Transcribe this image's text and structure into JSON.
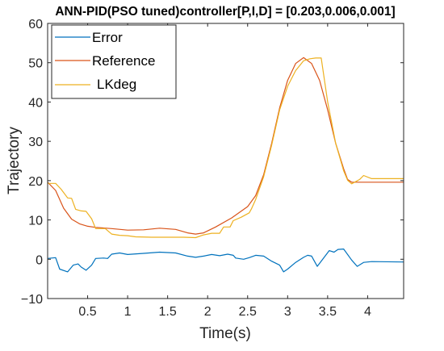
{
  "chart_data": {
    "type": "line",
    "title": "ANN-PID(PSO tuned)controller[P,I,D] = [0.203,0.006,0.001]",
    "xlabel": "Time(s)",
    "ylabel": "Trajectory",
    "xlim": [
      0,
      4.45
    ],
    "ylim": [
      -10,
      60
    ],
    "xticks": [
      0.5,
      1,
      1.5,
      2,
      2.5,
      3,
      3.5,
      4
    ],
    "xtick_labels": [
      "0.5",
      "1",
      "1.5",
      "2",
      "2.5",
      "3",
      "3.5",
      "4"
    ],
    "yticks": [
      -10,
      0,
      10,
      20,
      30,
      40,
      50,
      60
    ],
    "ytick_labels": [
      "−10",
      "0",
      "10",
      "20",
      "30",
      "40",
      "50",
      "60"
    ],
    "grid": false,
    "legend_position": "top-left",
    "series": [
      {
        "name": "Error",
        "color": "#0072BD",
        "points": [
          [
            0,
            0.2
          ],
          [
            0.1,
            0.4
          ],
          [
            0.15,
            -2.5
          ],
          [
            0.25,
            -3.2
          ],
          [
            0.32,
            -1.5
          ],
          [
            0.38,
            -1.2
          ],
          [
            0.42,
            -2.0
          ],
          [
            0.48,
            -2.8
          ],
          [
            0.55,
            -1.5
          ],
          [
            0.6,
            0.2
          ],
          [
            0.7,
            0.3
          ],
          [
            0.75,
            0.2
          ],
          [
            0.8,
            1.3
          ],
          [
            0.9,
            1.6
          ],
          [
            1.0,
            1.2
          ],
          [
            1.2,
            1.5
          ],
          [
            1.4,
            1.8
          ],
          [
            1.6,
            1.6
          ],
          [
            1.75,
            0.8
          ],
          [
            1.85,
            0.5
          ],
          [
            1.95,
            0.8
          ],
          [
            2.05,
            1.2
          ],
          [
            2.15,
            0.9
          ],
          [
            2.25,
            1.3
          ],
          [
            2.32,
            1.0
          ],
          [
            2.35,
            0.3
          ],
          [
            2.45,
            0.0
          ],
          [
            2.52,
            0.4
          ],
          [
            2.6,
            1.0
          ],
          [
            2.7,
            0.8
          ],
          [
            2.8,
            -0.5
          ],
          [
            2.9,
            -1.5
          ],
          [
            2.95,
            -3.2
          ],
          [
            3.0,
            -2.5
          ],
          [
            3.1,
            -0.8
          ],
          [
            3.2,
            0.5
          ],
          [
            3.25,
            1.0
          ],
          [
            3.3,
            0.8
          ],
          [
            3.37,
            -1.8
          ],
          [
            3.45,
            0.3
          ],
          [
            3.52,
            2.2
          ],
          [
            3.58,
            1.8
          ],
          [
            3.63,
            2.5
          ],
          [
            3.7,
            2.6
          ],
          [
            3.8,
            -0.2
          ],
          [
            3.87,
            -1.8
          ],
          [
            3.95,
            -0.8
          ],
          [
            4.05,
            -0.6
          ],
          [
            4.45,
            -0.7
          ]
        ]
      },
      {
        "name": "Reference",
        "color": "#D95319",
        "points": [
          [
            0,
            19.6
          ],
          [
            0.1,
            17.5
          ],
          [
            0.2,
            13.0
          ],
          [
            0.3,
            10.2
          ],
          [
            0.4,
            9.0
          ],
          [
            0.5,
            8.4
          ],
          [
            0.6,
            8.1
          ],
          [
            0.8,
            7.8
          ],
          [
            1.0,
            7.4
          ],
          [
            1.2,
            7.5
          ],
          [
            1.4,
            7.9
          ],
          [
            1.6,
            7.6
          ],
          [
            1.75,
            6.7
          ],
          [
            1.85,
            6.4
          ],
          [
            1.95,
            6.7
          ],
          [
            2.1,
            8.2
          ],
          [
            2.3,
            10.5
          ],
          [
            2.5,
            13.4
          ],
          [
            2.6,
            16.2
          ],
          [
            2.7,
            21.5
          ],
          [
            2.8,
            29.5
          ],
          [
            2.9,
            38.5
          ],
          [
            3.0,
            45.5
          ],
          [
            3.1,
            49.8
          ],
          [
            3.2,
            51.3
          ],
          [
            3.3,
            49.8
          ],
          [
            3.4,
            45.5
          ],
          [
            3.5,
            38.0
          ],
          [
            3.6,
            29.5
          ],
          [
            3.7,
            23.0
          ],
          [
            3.75,
            20.3
          ],
          [
            3.8,
            19.6
          ],
          [
            4.45,
            19.6
          ]
        ]
      },
      {
        "name": "LKdeg",
        "color": "#EDB120",
        "points": [
          [
            0,
            19.3
          ],
          [
            0.1,
            19.3
          ],
          [
            0.17,
            17.8
          ],
          [
            0.25,
            15.6
          ],
          [
            0.3,
            15.5
          ],
          [
            0.35,
            12.7
          ],
          [
            0.42,
            12.3
          ],
          [
            0.48,
            12.2
          ],
          [
            0.55,
            10.3
          ],
          [
            0.6,
            7.8
          ],
          [
            0.72,
            7.8
          ],
          [
            0.8,
            6.4
          ],
          [
            0.9,
            6.1
          ],
          [
            1.0,
            6.0
          ],
          [
            1.1,
            5.7
          ],
          [
            1.3,
            5.6
          ],
          [
            1.5,
            5.6
          ],
          [
            1.7,
            5.6
          ],
          [
            1.85,
            5.5
          ],
          [
            1.95,
            6.2
          ],
          [
            2.05,
            6.6
          ],
          [
            2.15,
            6.6
          ],
          [
            2.2,
            8.2
          ],
          [
            2.28,
            8.2
          ],
          [
            2.32,
            9.8
          ],
          [
            2.42,
            10.7
          ],
          [
            2.52,
            11.8
          ],
          [
            2.55,
            12.9
          ],
          [
            2.6,
            15.2
          ],
          [
            2.7,
            21.0
          ],
          [
            2.8,
            29.0
          ],
          [
            2.9,
            38.0
          ],
          [
            3.0,
            44.0
          ],
          [
            3.1,
            48.0
          ],
          [
            3.2,
            50.5
          ],
          [
            3.28,
            51.0
          ],
          [
            3.35,
            51.2
          ],
          [
            3.42,
            51.2
          ],
          [
            3.5,
            40.0
          ],
          [
            3.6,
            29.5
          ],
          [
            3.7,
            22.5
          ],
          [
            3.75,
            20.1
          ],
          [
            3.8,
            19.2
          ],
          [
            3.9,
            20.3
          ],
          [
            3.95,
            21.3
          ],
          [
            4.05,
            20.5
          ],
          [
            4.45,
            20.5
          ]
        ]
      }
    ]
  }
}
